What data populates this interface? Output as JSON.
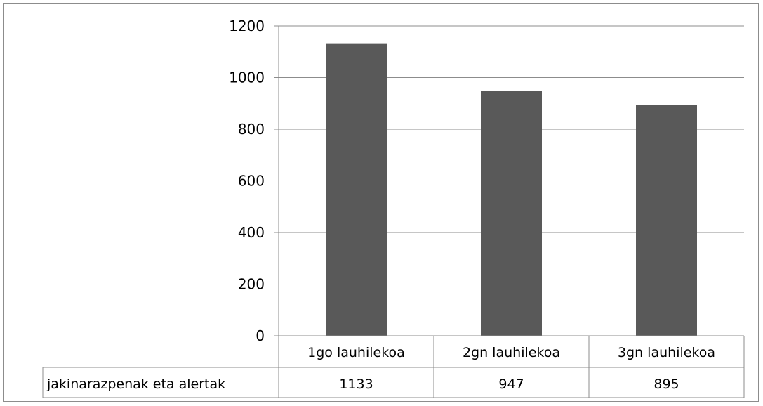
{
  "chart_data": {
    "type": "bar",
    "categories": [
      "1go lauhilekoa",
      "2gn lauhilekoa",
      "3gn lauhilekoa"
    ],
    "series": [
      {
        "name": "jakinarazpenak eta alertak",
        "values": [
          1133,
          947,
          895
        ],
        "color": "#595959"
      }
    ],
    "ylim": [
      0,
      1200
    ],
    "yticks": [
      0,
      200,
      400,
      600,
      800,
      1000,
      1200
    ],
    "grid": true,
    "legend": "data-table-row",
    "title": "",
    "xlabel": "",
    "ylabel": ""
  }
}
